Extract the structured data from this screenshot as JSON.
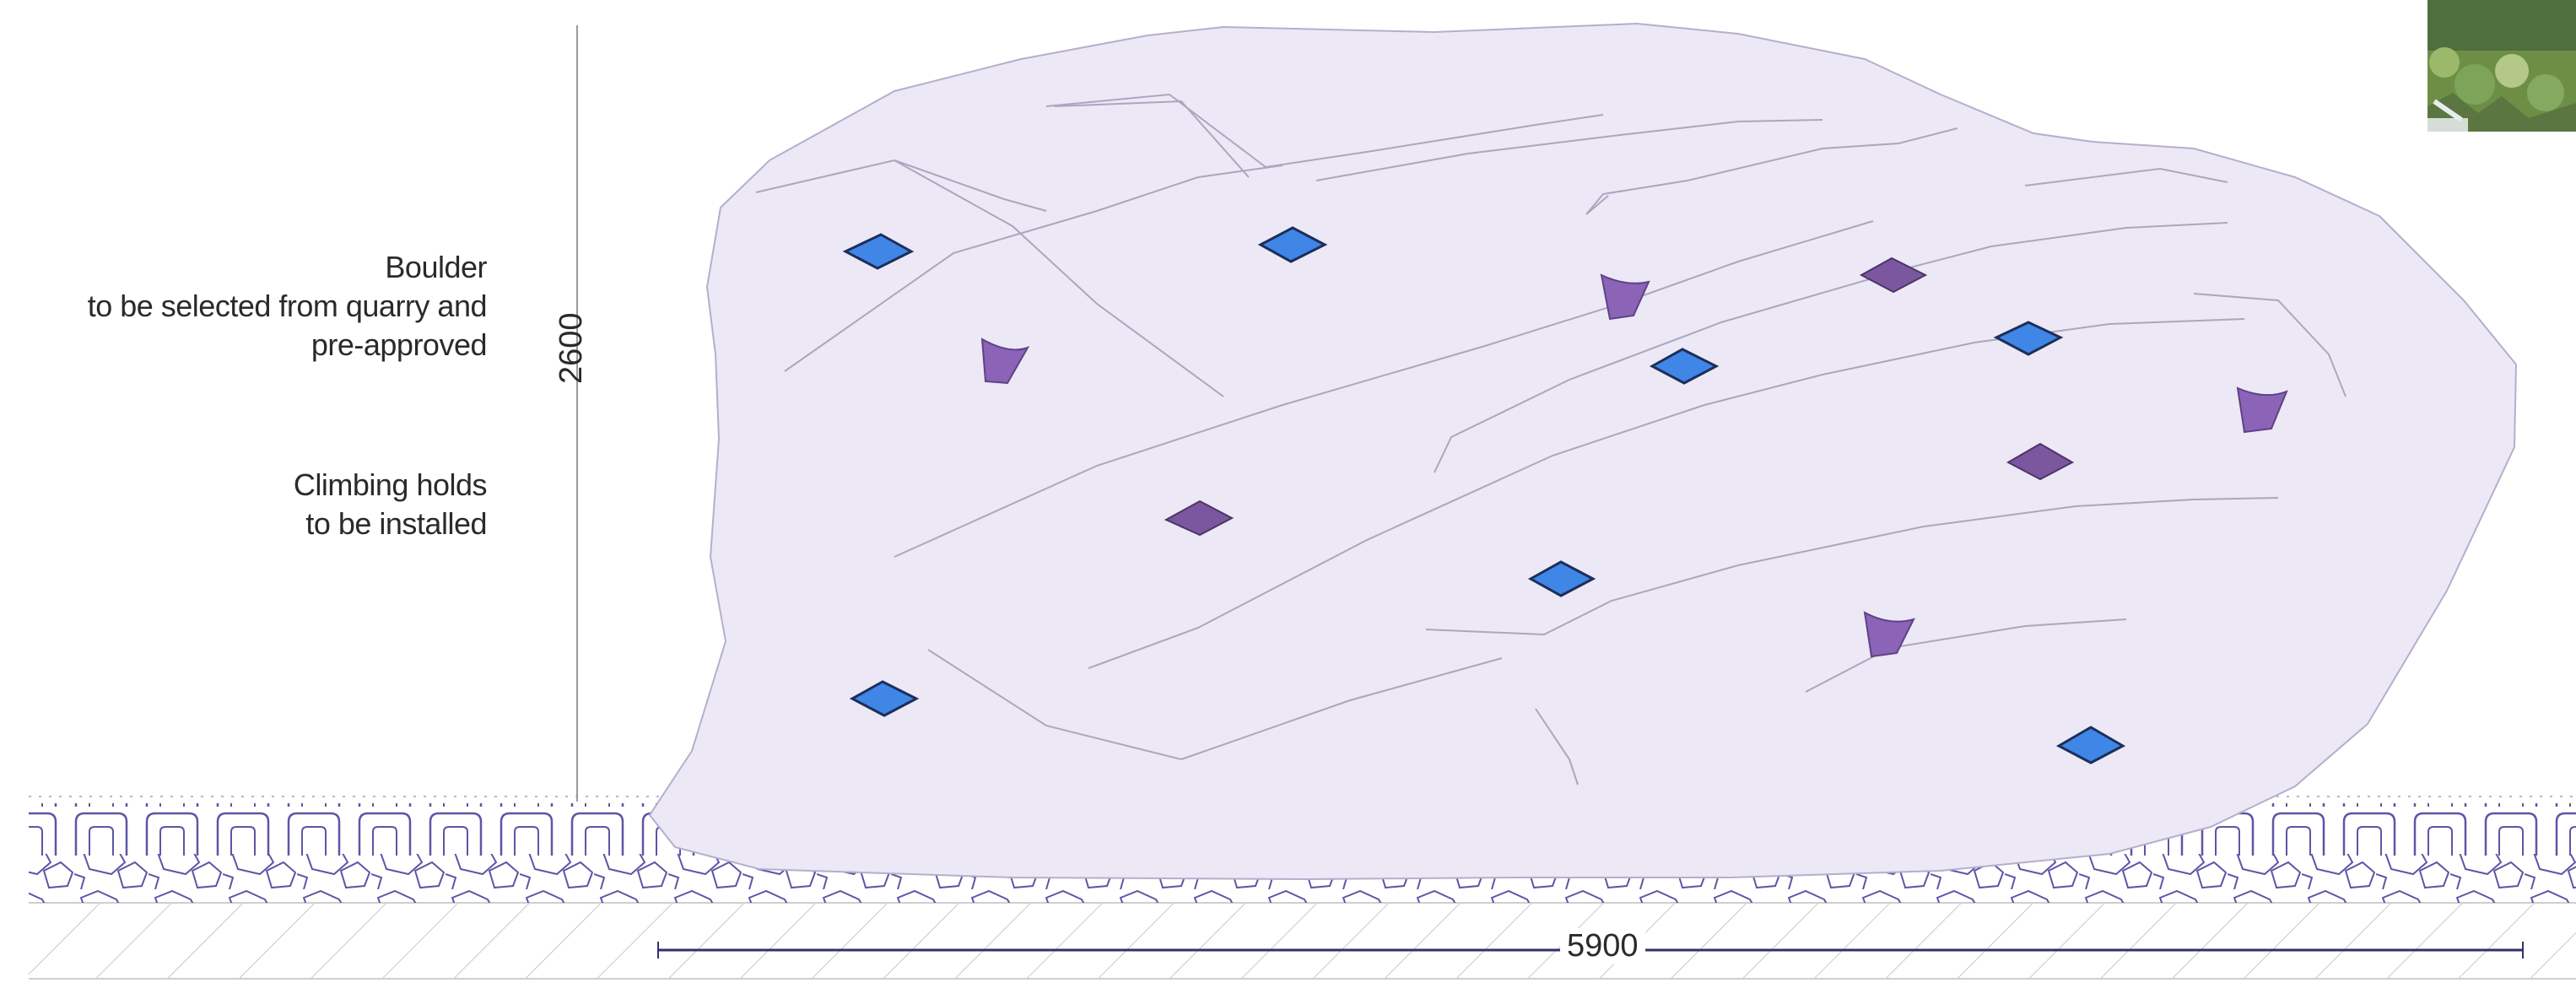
{
  "labels": {
    "boulder": {
      "line1": "Boulder",
      "line2": "to be selected from quarry and",
      "line3": "pre-approved"
    },
    "holds": {
      "line1": "Climbing holds",
      "line2": "to be installed"
    }
  },
  "dimensions": {
    "height": "2600",
    "width": "5900"
  },
  "colors": {
    "boulder_fill": "#ece8f5",
    "boulder_edge": "#8f8aa6",
    "hold_blue": "#3f86e6",
    "hold_purple": "#8a62b5",
    "hold_dark_purple": "#6f4f93",
    "ground_line": "#5c56a6",
    "dimension_line": "#2f3170"
  }
}
